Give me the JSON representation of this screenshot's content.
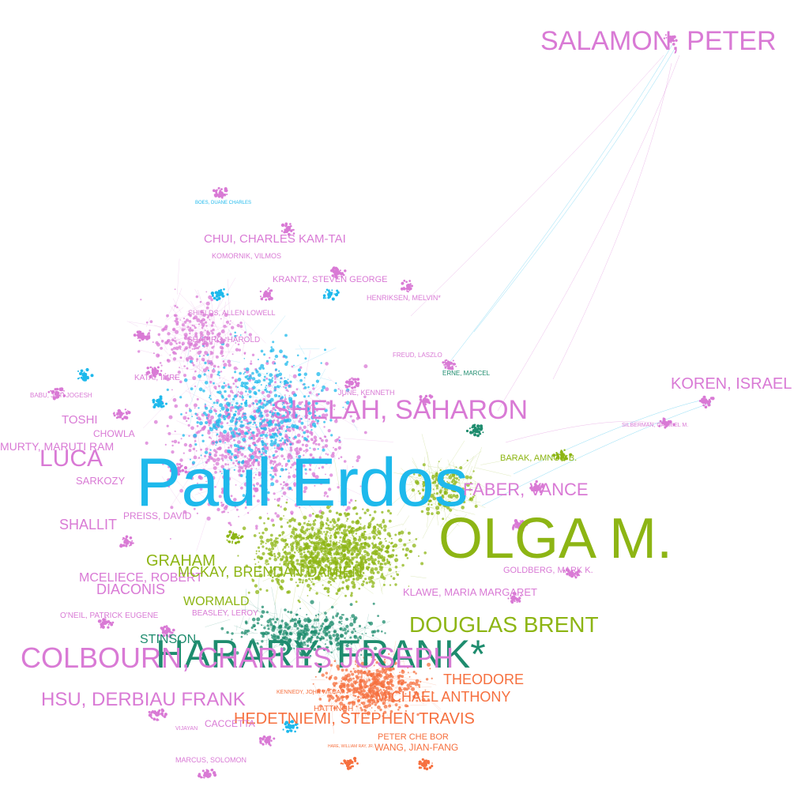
{
  "palette": {
    "pink": "#d97ad5",
    "blue": "#1eb9ec",
    "lime": "#8db514",
    "teal": "#1e8c6e",
    "orange": "#f6703f",
    "background": "#ffffff"
  },
  "labels": [
    {
      "text": "Paul Erdos",
      "group": "blue"
    },
    {
      "text": "OLGA M.",
      "group": "lime"
    },
    {
      "text": "SALAMON, PETER",
      "group": "pink"
    },
    {
      "text": "SHELAH, SAHARON",
      "group": "pink"
    },
    {
      "text": "KOREN, ISRAEL",
      "group": "pink"
    },
    {
      "text": "CHUI, CHARLES KAM-TAI",
      "group": "pink"
    },
    {
      "text": "KOMORNIK, VILMOS",
      "group": "pink"
    },
    {
      "text": "KRANTZ, STEVEN GEORGE",
      "group": "pink"
    },
    {
      "text": "HENRIKSEN, MELVIN*",
      "group": "pink"
    },
    {
      "text": "BOES, DUANE CHARLES",
      "group": "blue"
    },
    {
      "text": "BABU, JOTI JOGESH",
      "group": "pink"
    },
    {
      "text": "SILBERMAN, GABRIEL M.",
      "group": "pink"
    },
    {
      "text": "BARAK, AMNON B.",
      "group": "lime"
    },
    {
      "text": "FABER, VANCE",
      "group": "pink"
    },
    {
      "text": "LUCA",
      "group": "pink"
    },
    {
      "text": "MURTY, MARUTI RAM",
      "group": "pink"
    },
    {
      "text": "CHOWLA",
      "group": "pink"
    },
    {
      "text": "TOSHI",
      "group": "pink"
    },
    {
      "text": "SHALLIT",
      "group": "pink"
    },
    {
      "text": "HARARY, FRANK*",
      "group": "teal"
    },
    {
      "text": "COLBOURN, CHARLES JOSEPH",
      "group": "pink"
    },
    {
      "text": "HSU, DERBIAU FRANK",
      "group": "pink"
    },
    {
      "text": "MCELIECE, ROBERT",
      "group": "pink"
    },
    {
      "text": "DIACONIS",
      "group": "pink"
    },
    {
      "text": "O'NEIL, PATRICK EUGENE",
      "group": "pink"
    },
    {
      "text": "STINSON",
      "group": "teal"
    },
    {
      "text": "WORMALD",
      "group": "lime"
    },
    {
      "text": "GRAHAM",
      "group": "lime"
    },
    {
      "text": "MCKAY, BRENDAN DAMIEN",
      "group": "lime"
    },
    {
      "text": "DOUGLAS BRENT",
      "group": "lime"
    },
    {
      "text": "KLAWE, MARIA MARGARET",
      "group": "pink"
    },
    {
      "text": "GOLDBERG, MARK K.",
      "group": "pink"
    },
    {
      "text": "ERNE, MARCEL",
      "group": "teal"
    },
    {
      "text": "FREUD, LASZLO",
      "group": "pink"
    },
    {
      "text": "JUNE, KENNETH",
      "group": "pink"
    },
    {
      "text": "SHIELDS, ALLEN LOWELL",
      "group": "pink"
    },
    {
      "text": "SHAPIRO, HAROLD",
      "group": "pink"
    },
    {
      "text": "KATAI, IMRE",
      "group": "pink"
    },
    {
      "text": "SARKOZY",
      "group": "pink"
    },
    {
      "text": "THEODORE",
      "group": "orange"
    },
    {
      "text": "MICHAEL ANTHONY",
      "group": "orange"
    },
    {
      "text": "HEDETNIEMI, STEPHEN TRAVIS",
      "group": "orange"
    },
    {
      "text": "PETER CHE BOR",
      "group": "orange"
    },
    {
      "text": "WANG, JIAN-FANG",
      "group": "orange"
    },
    {
      "text": "MARCUS, SOLOMON",
      "group": "pink"
    },
    {
      "text": "VIJAYAN",
      "group": "pink"
    },
    {
      "text": "CACCETTA",
      "group": "pink"
    },
    {
      "text": "HARE, WILLIAM RAY, JR.",
      "group": "orange"
    },
    {
      "text": "BEASLEY, LEROY",
      "group": "pink"
    },
    {
      "text": "HATTINGH",
      "group": "orange"
    },
    {
      "text": "PREISS, DAVID",
      "group": "pink"
    },
    {
      "text": "KENNEDY, JOHN WILLIAM",
      "group": "orange"
    }
  ]
}
